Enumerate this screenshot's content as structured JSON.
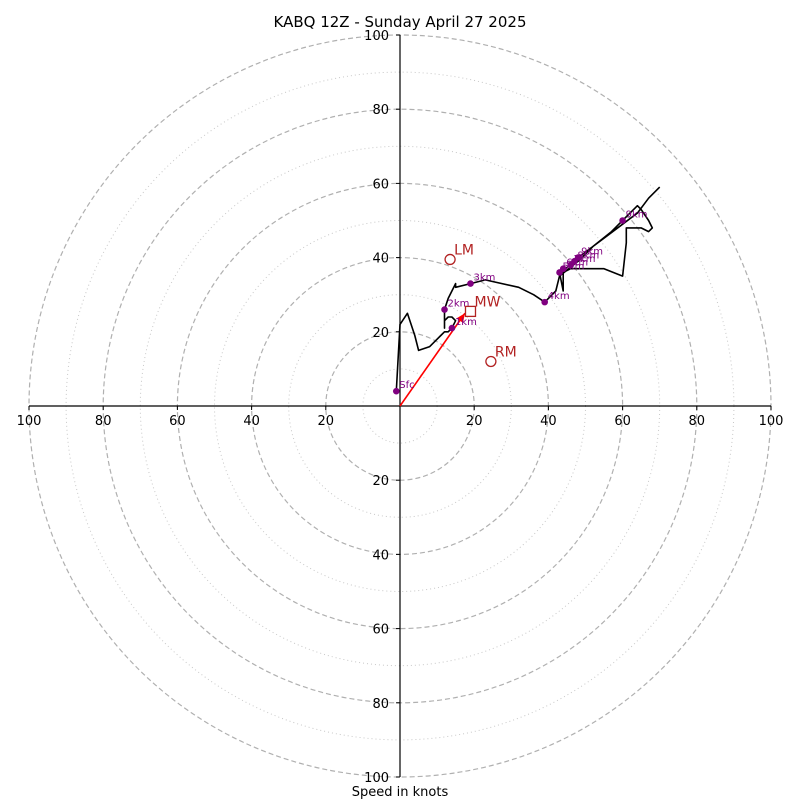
{
  "chart_data": {
    "type": "hodograph",
    "title": "KABQ 12Z - Sunday April 27 2025",
    "xlabel": "Speed in knots",
    "axis_range": [
      -100,
      100
    ],
    "ring_values_major": [
      20,
      40,
      60,
      80,
      100
    ],
    "ring_values_minor": [
      10,
      30,
      50,
      70,
      90
    ],
    "tick_labels_x": [
      "100",
      "80",
      "60",
      "40",
      "20",
      "20",
      "40",
      "60",
      "80",
      "100"
    ],
    "tick_values_x": [
      -100,
      -80,
      -60,
      -40,
      -20,
      20,
      40,
      60,
      80,
      100
    ],
    "tick_labels_y": [
      "100",
      "80",
      "60",
      "40",
      "20",
      "20",
      "40",
      "60",
      "80",
      "100"
    ],
    "tick_values_y": [
      100,
      80,
      60,
      40,
      20,
      -20,
      -40,
      -60,
      -80,
      -100
    ],
    "trace": [
      [
        -1,
        4
      ],
      [
        0,
        22
      ],
      [
        2,
        25
      ],
      [
        4,
        19
      ],
      [
        5,
        15
      ],
      [
        8,
        16
      ],
      [
        10,
        18
      ],
      [
        11,
        19
      ],
      [
        12,
        20
      ],
      [
        13,
        20
      ],
      [
        14,
        21
      ],
      [
        15,
        23
      ],
      [
        14,
        24
      ],
      [
        13,
        24
      ],
      [
        12,
        23
      ],
      [
        12,
        21
      ],
      [
        12,
        24
      ],
      [
        12,
        26
      ],
      [
        13,
        29
      ],
      [
        14,
        31
      ],
      [
        15,
        33
      ],
      [
        15,
        32
      ],
      [
        19,
        33
      ],
      [
        23,
        34
      ],
      [
        32,
        32
      ],
      [
        36,
        30
      ],
      [
        39,
        28
      ],
      [
        40,
        29
      ],
      [
        42,
        31
      ],
      [
        43,
        35
      ],
      [
        43,
        36
      ],
      [
        44,
        31
      ],
      [
        44,
        36
      ],
      [
        46,
        37
      ],
      [
        50,
        37
      ],
      [
        55,
        37
      ],
      [
        60,
        35
      ],
      [
        61,
        44
      ],
      [
        61,
        48
      ],
      [
        65,
        48
      ],
      [
        67,
        47
      ],
      [
        68,
        48
      ],
      [
        67,
        50
      ],
      [
        65,
        53
      ],
      [
        64,
        54
      ],
      [
        62,
        52
      ],
      [
        60,
        50
      ],
      [
        57,
        47
      ],
      [
        52,
        43
      ],
      [
        48,
        40
      ],
      [
        46,
        38
      ],
      [
        43,
        36
      ],
      [
        43,
        35
      ],
      [
        48,
        39
      ],
      [
        52,
        43
      ],
      [
        56,
        46
      ],
      [
        60,
        49
      ],
      [
        64,
        52
      ],
      [
        67,
        56
      ],
      [
        70,
        59
      ]
    ],
    "height_markers": [
      {
        "label": "Sfc",
        "u": -1,
        "v": 4
      },
      {
        "label": "1km",
        "u": 14,
        "v": 21
      },
      {
        "label": "2km",
        "u": 12,
        "v": 26
      },
      {
        "label": "3km",
        "u": 19,
        "v": 33
      },
      {
        "label": "4km",
        "u": 39,
        "v": 28
      },
      {
        "label": "5km",
        "u": 43,
        "v": 36
      },
      {
        "label": "6km",
        "u": 44,
        "v": 37
      },
      {
        "label": "7km",
        "u": 46,
        "v": 38
      },
      {
        "label": "8km",
        "u": 47,
        "v": 39
      },
      {
        "label": "9km",
        "u": 48,
        "v": 40
      },
      {
        "label": "9km",
        "u": 60,
        "v": 50
      }
    ],
    "storm_motion": [
      {
        "label": "LM",
        "u": 13.5,
        "v": 39.5,
        "marker": "circle"
      },
      {
        "label": "MW",
        "u": 19,
        "v": 25.5,
        "marker": "square"
      },
      {
        "label": "RM",
        "u": 24.5,
        "v": 12,
        "marker": "circle"
      }
    ],
    "arrow": {
      "from": [
        0,
        0
      ],
      "to": [
        17.5,
        25
      ]
    },
    "colors": {
      "trace": "#000000",
      "markers": "#800080",
      "motion": "#b22222",
      "arrow": "#ff0000",
      "grid_major": "#b0b0b0",
      "grid_minor": "#c8c8c8",
      "axes": "#000000"
    }
  }
}
